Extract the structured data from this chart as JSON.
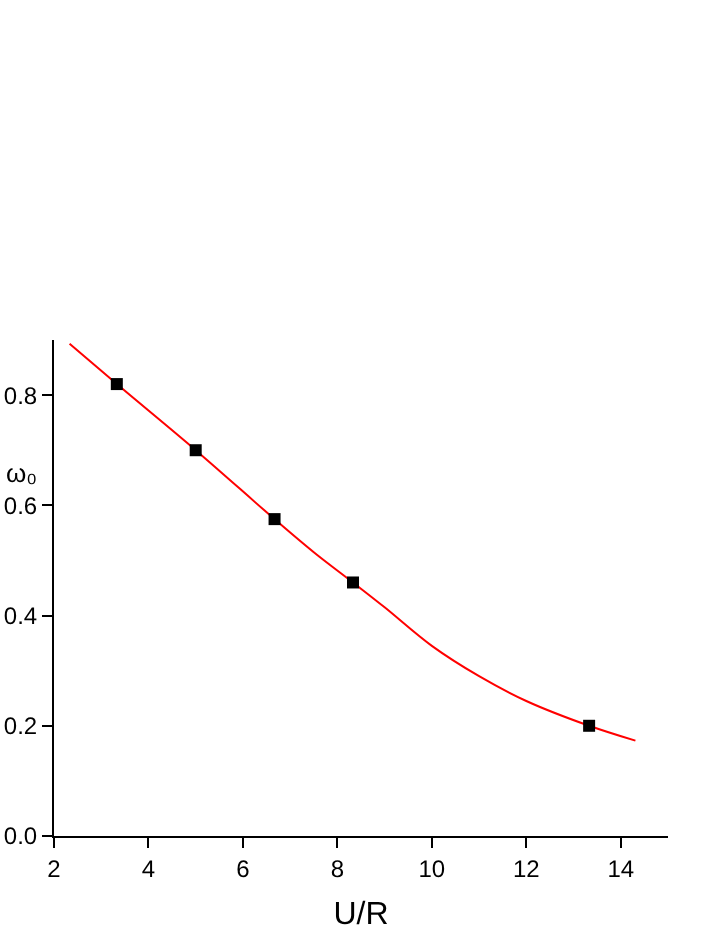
{
  "chart_data": {
    "type": "scatter",
    "xlabel": "U/R",
    "ylabel": "ω₀",
    "xlim": [
      2,
      15
    ],
    "ylim": [
      0,
      0.9
    ],
    "xticks": [
      2,
      4,
      6,
      8,
      10,
      12,
      14
    ],
    "yticks": [
      {
        "value": 0,
        "label": "0.0"
      },
      {
        "value": 0.2,
        "label": "0.2"
      },
      {
        "value": 0.4,
        "label": "0.4"
      },
      {
        "value": 0.6,
        "label": "0.6"
      },
      {
        "value": 0.8,
        "label": "0.8"
      }
    ],
    "grid": false,
    "series": [
      {
        "type": "line",
        "color": "#ff0000",
        "marker": "none",
        "line_style": "solid",
        "x": [
          2.33,
          3.33,
          5,
          6.67,
          7.5,
          8.33,
          9,
          10,
          11,
          12,
          13.33,
          14.31
        ],
        "values": [
          0.893,
          0.82,
          0.7,
          0.575,
          0.515,
          0.46,
          0.415,
          0.345,
          0.29,
          0.245,
          0.2,
          0.173
        ]
      },
      {
        "color": "#000000",
        "marker": "square",
        "x": [
          3.33,
          5,
          6.67,
          8.33,
          13.33
        ],
        "values": [
          0.82,
          0.7,
          0.575,
          0.46,
          0.2
        ]
      }
    ]
  }
}
